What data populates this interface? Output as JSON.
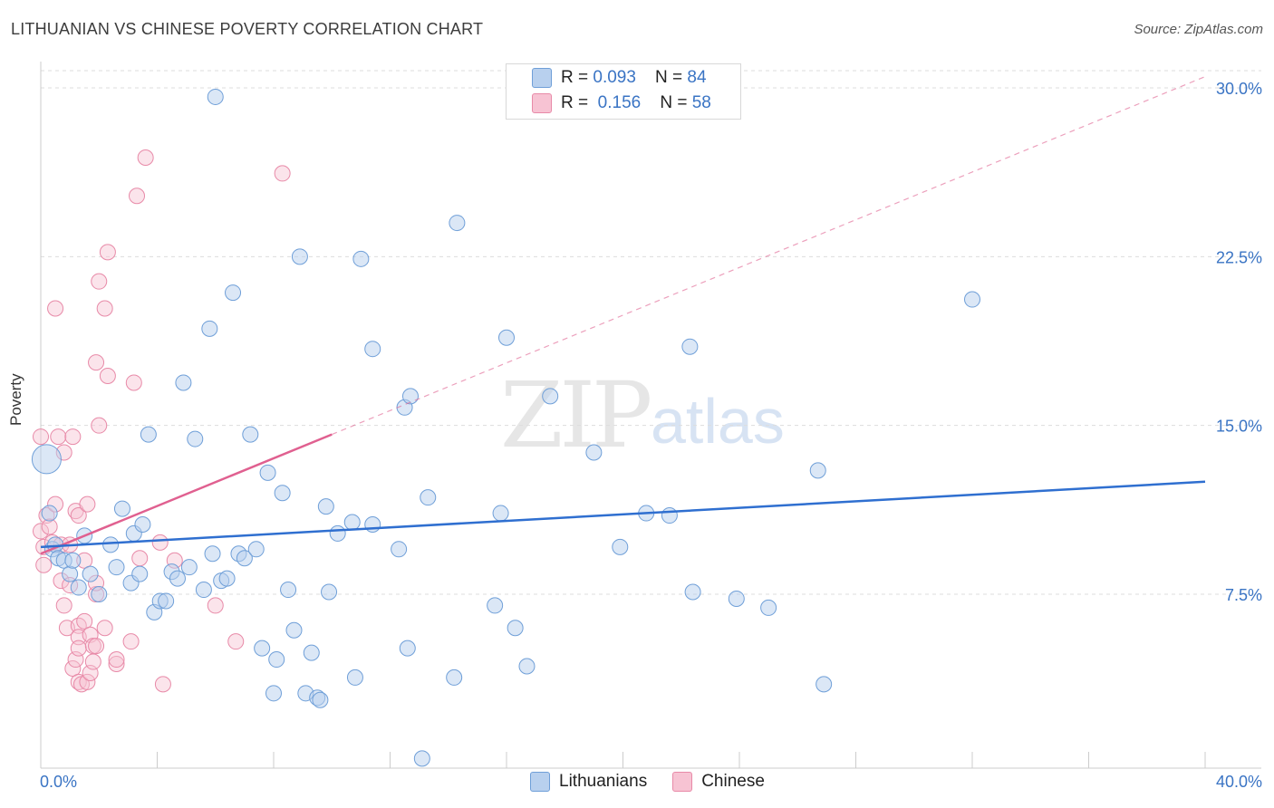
{
  "title": "LITHUANIAN VS CHINESE POVERTY CORRELATION CHART",
  "source": "Source: ZipAtlas.com",
  "watermark": {
    "zip": "ZIP",
    "atlas": "atlas"
  },
  "legend_top": {
    "rows": [
      {
        "r_label": "R = ",
        "r_value": "0.093",
        "n_label": "N = ",
        "n_value": "84"
      },
      {
        "r_label": "R = ",
        "r_value": "0.156",
        "n_label": "N = ",
        "n_value": "58"
      }
    ]
  },
  "legend_bottom": [
    "Lithuanians",
    "Chinese"
  ],
  "colors": {
    "lithuanians_fill": "#b8d0ee",
    "lithuanians_stroke": "#6f9fd8",
    "lithuanians_line": "#2f6fd0",
    "chinese_fill": "#f7c3d3",
    "chinese_stroke": "#e88aa8",
    "chinese_line": "#e06090",
    "tick_text": "#3a74c4",
    "grid": "#dddddd"
  },
  "chart_data": {
    "type": "scatter",
    "ylabel": "Poverty",
    "xlabel": "",
    "xlim": [
      0,
      40
    ],
    "ylim": [
      0,
      31
    ],
    "x_ticks": [
      "0.0%",
      "40.0%"
    ],
    "y_ticks": [
      {
        "value": 7.5,
        "label": "7.5%"
      },
      {
        "value": 15.0,
        "label": "15.0%"
      },
      {
        "value": 22.5,
        "label": "22.5%"
      },
      {
        "value": 30.0,
        "label": "30.0%"
      }
    ],
    "grid": true,
    "series": [
      {
        "name": "Lithuanians",
        "R": 0.093,
        "N": 84,
        "trend": {
          "x": [
            0,
            40
          ],
          "y": [
            9.6,
            12.5
          ]
        },
        "points": [
          [
            0.2,
            13.5
          ],
          [
            0.3,
            11.1
          ],
          [
            0.4,
            9.5
          ],
          [
            0.5,
            9.7
          ],
          [
            0.6,
            9.1
          ],
          [
            0.8,
            9.0
          ],
          [
            1.0,
            8.4
          ],
          [
            1.1,
            9.0
          ],
          [
            1.3,
            7.8
          ],
          [
            1.5,
            10.1
          ],
          [
            1.7,
            8.4
          ],
          [
            2.0,
            7.5
          ],
          [
            2.4,
            9.7
          ],
          [
            2.6,
            8.7
          ],
          [
            2.8,
            11.3
          ],
          [
            3.1,
            8.0
          ],
          [
            3.2,
            10.2
          ],
          [
            3.4,
            8.4
          ],
          [
            3.5,
            10.6
          ],
          [
            3.7,
            14.6
          ],
          [
            3.9,
            6.7
          ],
          [
            4.1,
            7.2
          ],
          [
            4.3,
            7.2
          ],
          [
            4.5,
            8.5
          ],
          [
            4.7,
            8.2
          ],
          [
            4.9,
            16.9
          ],
          [
            5.1,
            8.7
          ],
          [
            5.3,
            14.4
          ],
          [
            5.6,
            7.7
          ],
          [
            5.8,
            19.3
          ],
          [
            5.9,
            9.3
          ],
          [
            6.0,
            29.6
          ],
          [
            6.2,
            8.1
          ],
          [
            6.4,
            8.2
          ],
          [
            6.6,
            20.9
          ],
          [
            6.8,
            9.3
          ],
          [
            7.0,
            9.1
          ],
          [
            7.2,
            14.6
          ],
          [
            7.4,
            9.5
          ],
          [
            7.6,
            5.1
          ],
          [
            7.8,
            12.9
          ],
          [
            8.0,
            3.1
          ],
          [
            8.1,
            4.6
          ],
          [
            8.3,
            12.0
          ],
          [
            8.5,
            7.7
          ],
          [
            8.7,
            5.9
          ],
          [
            8.9,
            22.5
          ],
          [
            9.1,
            3.1
          ],
          [
            9.3,
            4.9
          ],
          [
            9.5,
            2.9
          ],
          [
            9.6,
            2.8
          ],
          [
            9.9,
            7.6
          ],
          [
            9.8,
            11.4
          ],
          [
            10.2,
            10.2
          ],
          [
            10.7,
            10.7
          ],
          [
            11.0,
            22.4
          ],
          [
            11.4,
            10.6
          ],
          [
            11.4,
            18.4
          ],
          [
            10.8,
            3.8
          ],
          [
            12.3,
            9.5
          ],
          [
            12.5,
            15.8
          ],
          [
            12.7,
            16.3
          ],
          [
            12.6,
            5.1
          ],
          [
            13.1,
            0.2
          ],
          [
            13.3,
            11.8
          ],
          [
            14.3,
            24.0
          ],
          [
            14.2,
            3.8
          ],
          [
            15.8,
            11.1
          ],
          [
            15.6,
            7.0
          ],
          [
            16.0,
            18.9
          ],
          [
            16.3,
            6.0
          ],
          [
            16.7,
            4.3
          ],
          [
            17.5,
            16.3
          ],
          [
            19.0,
            13.8
          ],
          [
            19.9,
            9.6
          ],
          [
            20.8,
            11.1
          ],
          [
            21.6,
            11.0
          ],
          [
            22.3,
            18.5
          ],
          [
            22.4,
            7.6
          ],
          [
            23.9,
            7.3
          ],
          [
            25.0,
            6.9
          ],
          [
            26.7,
            13.0
          ],
          [
            26.9,
            3.5
          ],
          [
            32.0,
            20.6
          ]
        ]
      },
      {
        "name": "Chinese",
        "R": 0.156,
        "N": 58,
        "trend": {
          "x": [
            0,
            10
          ],
          "y": [
            9.3,
            14.6
          ],
          "extended": {
            "x": [
              10,
              40
            ],
            "y": [
              14.6,
              30.5
            ]
          }
        },
        "points": [
          [
            0.0,
            14.5
          ],
          [
            0.0,
            10.3
          ],
          [
            0.1,
            9.6
          ],
          [
            0.1,
            8.8
          ],
          [
            0.2,
            11.0
          ],
          [
            0.3,
            10.5
          ],
          [
            0.4,
            9.8
          ],
          [
            0.5,
            11.5
          ],
          [
            0.5,
            20.2
          ],
          [
            0.6,
            14.5
          ],
          [
            0.7,
            9.7
          ],
          [
            0.7,
            8.1
          ],
          [
            0.8,
            13.8
          ],
          [
            0.8,
            7.0
          ],
          [
            0.9,
            6.0
          ],
          [
            1.0,
            9.7
          ],
          [
            1.0,
            7.9
          ],
          [
            1.1,
            14.5
          ],
          [
            1.1,
            4.2
          ],
          [
            1.2,
            11.2
          ],
          [
            1.2,
            4.6
          ],
          [
            1.3,
            6.1
          ],
          [
            1.3,
            11.0
          ],
          [
            1.3,
            5.6
          ],
          [
            1.3,
            3.6
          ],
          [
            1.3,
            5.1
          ],
          [
            1.4,
            3.5
          ],
          [
            1.5,
            6.3
          ],
          [
            1.5,
            9.0
          ],
          [
            1.6,
            3.6
          ],
          [
            1.6,
            11.5
          ],
          [
            1.7,
            4.0
          ],
          [
            1.7,
            5.7
          ],
          [
            1.8,
            4.5
          ],
          [
            1.8,
            5.2
          ],
          [
            1.9,
            7.5
          ],
          [
            1.9,
            8.0
          ],
          [
            1.9,
            17.8
          ],
          [
            1.9,
            5.2
          ],
          [
            2.0,
            15.0
          ],
          [
            2.0,
            21.4
          ],
          [
            2.2,
            6.0
          ],
          [
            2.2,
            20.2
          ],
          [
            2.3,
            22.7
          ],
          [
            2.3,
            17.2
          ],
          [
            2.6,
            4.4
          ],
          [
            2.6,
            4.6
          ],
          [
            3.1,
            5.4
          ],
          [
            3.2,
            16.9
          ],
          [
            3.3,
            25.2
          ],
          [
            3.4,
            9.1
          ],
          [
            3.6,
            26.9
          ],
          [
            4.1,
            9.8
          ],
          [
            4.2,
            3.5
          ],
          [
            4.6,
            9.0
          ],
          [
            6.0,
            7.0
          ],
          [
            6.7,
            5.4
          ],
          [
            8.3,
            26.2
          ]
        ]
      }
    ]
  }
}
